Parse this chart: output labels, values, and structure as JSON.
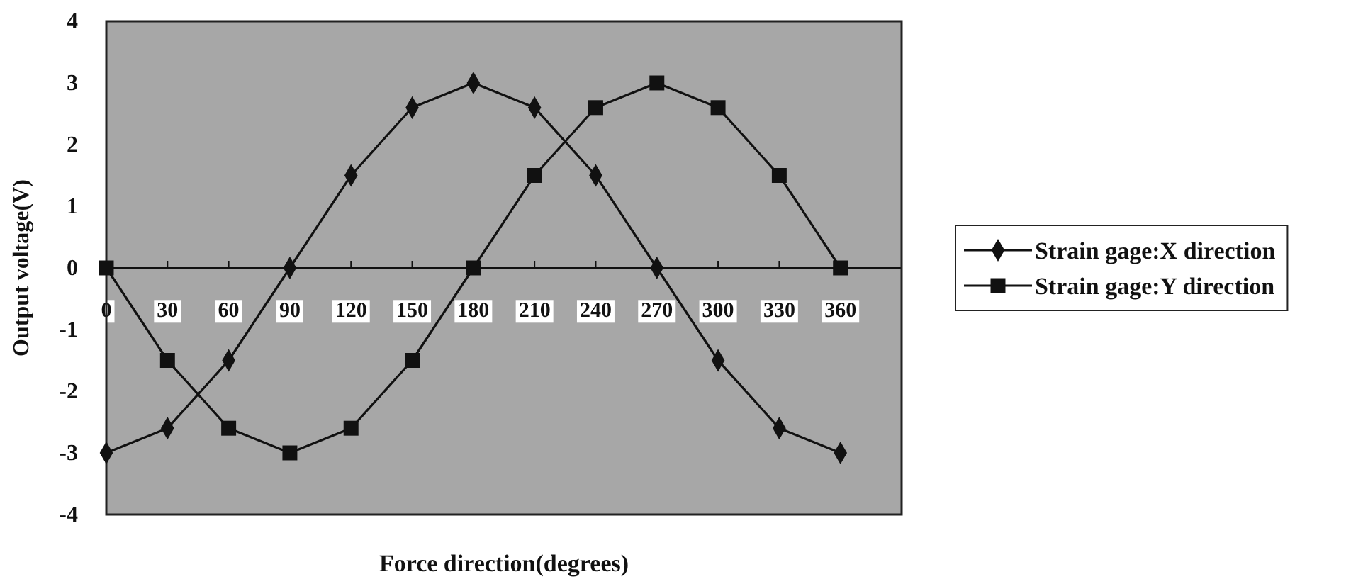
{
  "chart_data": {
    "type": "line",
    "xlabel": "Force direction(degrees)",
    "ylabel": "Output voltage(V)",
    "x": [
      0,
      30,
      60,
      90,
      120,
      150,
      180,
      210,
      240,
      270,
      300,
      330,
      360
    ],
    "xlim": [
      0,
      390
    ],
    "xticks": [
      0,
      30,
      60,
      90,
      120,
      150,
      180,
      210,
      240,
      270,
      300,
      330,
      360
    ],
    "ylim": [
      -4,
      4
    ],
    "yticks": [
      -4,
      -3,
      -2,
      -1,
      0,
      1,
      2,
      3,
      4
    ],
    "series": [
      {
        "name": "Strain gage:X direction",
        "color": "#111111",
        "marker": "diamond",
        "values": [
          -3,
          -2.6,
          -1.5,
          0,
          1.5,
          2.6,
          3,
          2.6,
          1.5,
          0,
          -1.5,
          -2.6,
          -3
        ]
      },
      {
        "name": "Strain gage:Y direction",
        "color": "#111111",
        "marker": "square",
        "values": [
          0,
          -1.5,
          -2.6,
          -3,
          -2.6,
          -1.5,
          0,
          1.5,
          2.6,
          3,
          2.6,
          1.5,
          0
        ]
      }
    ],
    "legend": "right",
    "line_style": "solid"
  }
}
